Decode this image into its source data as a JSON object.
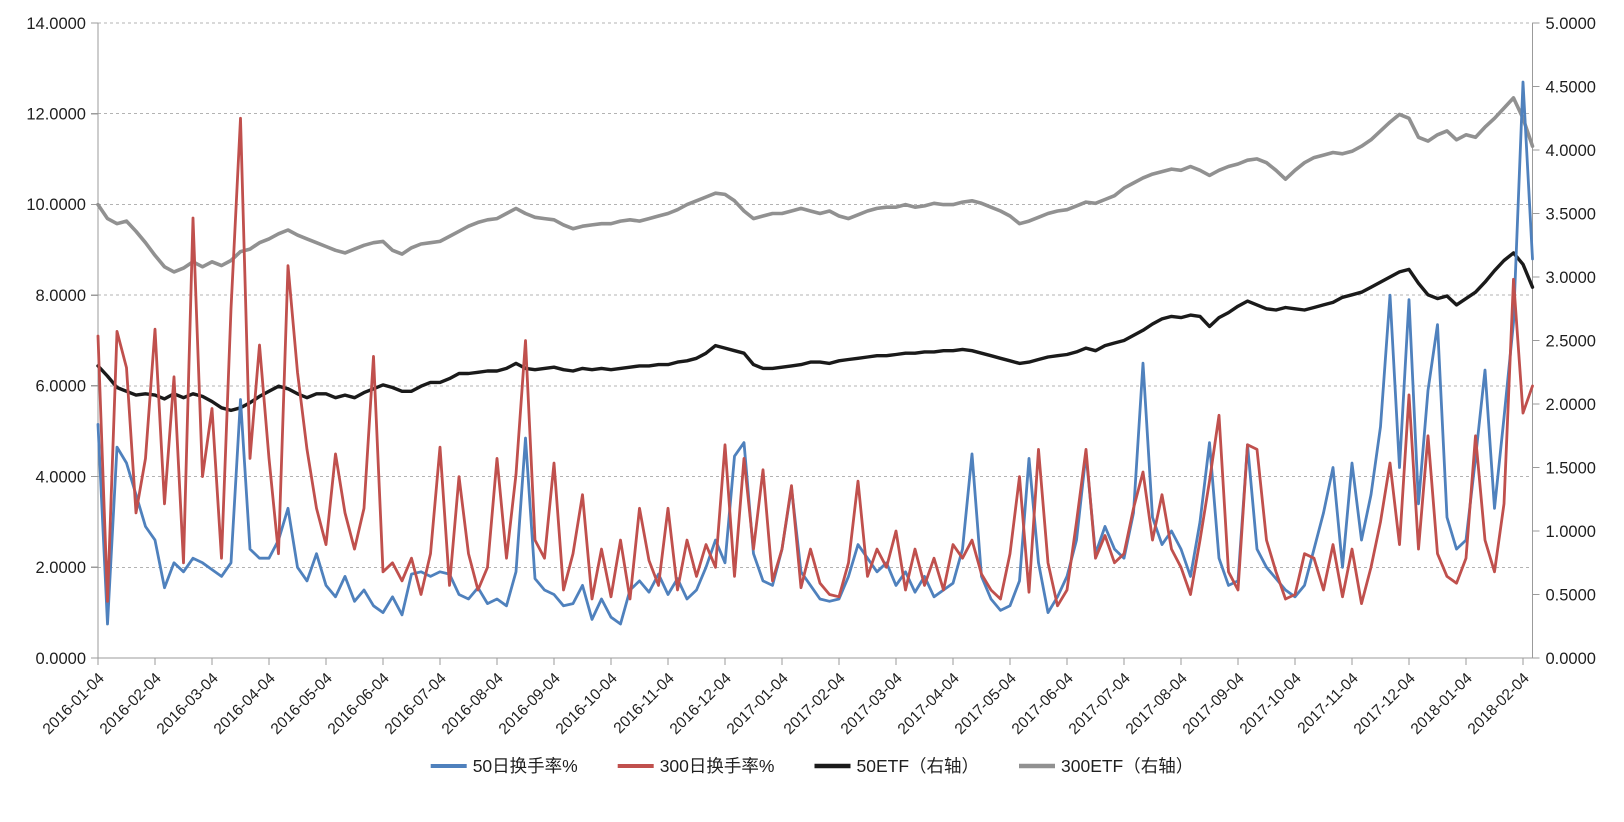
{
  "chart_data": {
    "type": "line",
    "title": "",
    "grid": "horizontal-dashed",
    "legend_position": "bottom-center",
    "points_per_month": 6,
    "x_tick_labels": [
      "2016-01-04",
      "2016-02-04",
      "2016-03-04",
      "2016-04-04",
      "2016-05-04",
      "2016-06-04",
      "2016-07-04",
      "2016-08-04",
      "2016-09-04",
      "2016-10-04",
      "2016-11-04",
      "2016-12-04",
      "2017-01-04",
      "2017-02-04",
      "2017-03-04",
      "2017-04-04",
      "2017-05-04",
      "2017-06-04",
      "2017-07-04",
      "2017-08-04",
      "2017-09-04",
      "2017-10-04",
      "2017-11-04",
      "2017-12-04",
      "2018-01-04",
      "2018-02-04"
    ],
    "left_axis": {
      "min": 0,
      "max": 14,
      "step": 2,
      "tick_labels": [
        "0.0000",
        "2.0000",
        "4.0000",
        "6.0000",
        "8.0000",
        "10.0000",
        "12.0000",
        "14.0000"
      ]
    },
    "right_axis": {
      "min": 0,
      "max": 5,
      "step": 0.5,
      "tick_labels": [
        "0.0000",
        "0.5000",
        "1.0000",
        "1.5000",
        "2.0000",
        "2.5000",
        "3.0000",
        "3.5000",
        "4.0000",
        "4.5000",
        "5.0000"
      ]
    },
    "colors": {
      "turnover_50d": "#4F81BD",
      "turnover_300d": "#C0504D",
      "etf_50": "#1a1a1a",
      "etf_300": "#919191",
      "gridline": "#b3b3b3",
      "axis": "#9b9b9b",
      "label": "#1f1f1f"
    },
    "series": [
      {
        "id": "turnover-50d",
        "name": "50日换手率%",
        "axis": "left",
        "color": "#4F81BD",
        "values": [
          5.15,
          0.75,
          4.65,
          4.3,
          3.6,
          2.9,
          2.6,
          1.55,
          2.1,
          1.9,
          2.2,
          2.1,
          1.95,
          1.8,
          2.1,
          5.7,
          2.4,
          2.2,
          2.2,
          2.6,
          3.3,
          2.0,
          1.7,
          2.3,
          1.6,
          1.35,
          1.8,
          1.25,
          1.5,
          1.15,
          1.0,
          1.35,
          0.95,
          1.85,
          1.9,
          1.8,
          1.9,
          1.85,
          1.4,
          1.3,
          1.55,
          1.2,
          1.3,
          1.15,
          1.9,
          4.85,
          1.75,
          1.5,
          1.4,
          1.15,
          1.2,
          1.6,
          0.85,
          1.3,
          0.9,
          0.75,
          1.5,
          1.7,
          1.45,
          1.85,
          1.4,
          1.75,
          1.3,
          1.5,
          2.0,
          2.6,
          2.1,
          4.45,
          4.75,
          2.3,
          1.7,
          1.6,
          2.4,
          3.75,
          1.9,
          1.6,
          1.3,
          1.25,
          1.3,
          1.8,
          2.5,
          2.2,
          1.9,
          2.1,
          1.6,
          1.9,
          1.45,
          1.8,
          1.35,
          1.5,
          1.65,
          2.4,
          4.5,
          1.8,
          1.3,
          1.05,
          1.15,
          1.7,
          4.4,
          2.1,
          1.0,
          1.35,
          1.8,
          2.6,
          4.5,
          2.3,
          2.9,
          2.4,
          2.2,
          3.2,
          6.5,
          3.1,
          2.5,
          2.8,
          2.4,
          1.8,
          3.0,
          4.75,
          2.2,
          1.6,
          1.7,
          4.7,
          2.4,
          2.0,
          1.75,
          1.5,
          1.35,
          1.6,
          2.4,
          3.2,
          4.2,
          2.0,
          4.3,
          2.6,
          3.6,
          5.1,
          8.0,
          4.2,
          7.9,
          3.4,
          5.9,
          7.35,
          3.1,
          2.4,
          2.6,
          4.4,
          6.35,
          3.3,
          5.3,
          7.4,
          12.7,
          8.8
        ]
      },
      {
        "id": "turnover-300d",
        "name": "300日换手率%",
        "axis": "left",
        "color": "#C0504D",
        "values": [
          7.1,
          1.25,
          7.2,
          6.4,
          3.2,
          4.4,
          7.25,
          3.4,
          6.2,
          2.1,
          9.7,
          4.0,
          5.5,
          2.2,
          7.7,
          11.9,
          4.4,
          6.9,
          4.4,
          2.3,
          8.65,
          6.3,
          4.6,
          3.3,
          2.5,
          4.5,
          3.2,
          2.4,
          3.3,
          6.65,
          1.9,
          2.1,
          1.7,
          2.2,
          1.4,
          2.3,
          4.65,
          1.6,
          4.0,
          2.3,
          1.5,
          2.0,
          4.4,
          2.2,
          4.05,
          7.0,
          2.6,
          2.2,
          4.3,
          1.5,
          2.3,
          3.6,
          1.3,
          2.4,
          1.35,
          2.6,
          1.3,
          3.3,
          2.15,
          1.6,
          3.3,
          1.5,
          2.6,
          1.8,
          2.5,
          2.0,
          4.7,
          1.8,
          4.4,
          2.4,
          4.15,
          1.7,
          2.4,
          3.8,
          1.55,
          2.4,
          1.65,
          1.4,
          1.35,
          2.1,
          3.9,
          1.8,
          2.4,
          2.0,
          2.8,
          1.5,
          2.4,
          1.6,
          2.2,
          1.5,
          2.5,
          2.2,
          2.6,
          1.85,
          1.5,
          1.3,
          2.3,
          4.0,
          1.45,
          4.6,
          2.1,
          1.15,
          1.5,
          3.0,
          4.6,
          2.2,
          2.7,
          2.1,
          2.3,
          3.3,
          4.1,
          2.6,
          3.6,
          2.4,
          2.0,
          1.4,
          2.6,
          3.9,
          5.35,
          1.9,
          1.5,
          4.7,
          4.6,
          2.6,
          1.9,
          1.3,
          1.4,
          2.3,
          2.2,
          1.5,
          2.5,
          1.35,
          2.4,
          1.2,
          2.0,
          3.0,
          4.3,
          2.5,
          5.8,
          2.4,
          4.9,
          2.3,
          1.8,
          1.65,
          2.2,
          4.9,
          2.6,
          1.9,
          3.4,
          8.35,
          5.4,
          6.0
        ]
      },
      {
        "id": "etf-50",
        "name": "50ETF（右轴）",
        "axis": "right",
        "color": "#1a1a1a",
        "values": [
          2.3,
          2.22,
          2.13,
          2.1,
          2.07,
          2.08,
          2.07,
          2.04,
          2.08,
          2.05,
          2.08,
          2.06,
          2.02,
          1.97,
          1.95,
          1.97,
          2.01,
          2.06,
          2.1,
          2.14,
          2.12,
          2.08,
          2.05,
          2.08,
          2.08,
          2.05,
          2.07,
          2.05,
          2.09,
          2.12,
          2.15,
          2.13,
          2.1,
          2.1,
          2.14,
          2.17,
          2.17,
          2.2,
          2.24,
          2.24,
          2.25,
          2.26,
          2.26,
          2.28,
          2.32,
          2.28,
          2.27,
          2.28,
          2.29,
          2.27,
          2.26,
          2.28,
          2.27,
          2.28,
          2.27,
          2.28,
          2.29,
          2.3,
          2.3,
          2.31,
          2.31,
          2.33,
          2.34,
          2.36,
          2.4,
          2.46,
          2.44,
          2.42,
          2.4,
          2.31,
          2.28,
          2.28,
          2.29,
          2.3,
          2.31,
          2.33,
          2.33,
          2.32,
          2.34,
          2.35,
          2.36,
          2.37,
          2.38,
          2.38,
          2.39,
          2.4,
          2.4,
          2.41,
          2.41,
          2.42,
          2.42,
          2.43,
          2.42,
          2.4,
          2.38,
          2.36,
          2.34,
          2.32,
          2.33,
          2.35,
          2.37,
          2.38,
          2.39,
          2.41,
          2.44,
          2.42,
          2.46,
          2.48,
          2.5,
          2.54,
          2.58,
          2.63,
          2.67,
          2.69,
          2.68,
          2.7,
          2.69,
          2.61,
          2.68,
          2.72,
          2.77,
          2.81,
          2.78,
          2.75,
          2.74,
          2.76,
          2.75,
          2.74,
          2.76,
          2.78,
          2.8,
          2.84,
          2.86,
          2.88,
          2.92,
          2.96,
          3.0,
          3.04,
          3.06,
          2.95,
          2.86,
          2.83,
          2.85,
          2.78,
          2.83,
          2.88,
          2.96,
          3.05,
          3.13,
          3.19,
          3.1,
          2.92
        ]
      },
      {
        "id": "etf-300",
        "name": "300ETF（右轴）",
        "axis": "right",
        "color": "#919191",
        "values": [
          3.57,
          3.46,
          3.42,
          3.44,
          3.36,
          3.27,
          3.17,
          3.08,
          3.04,
          3.07,
          3.12,
          3.08,
          3.12,
          3.09,
          3.13,
          3.2,
          3.22,
          3.27,
          3.3,
          3.34,
          3.37,
          3.33,
          3.3,
          3.27,
          3.24,
          3.21,
          3.19,
          3.22,
          3.25,
          3.27,
          3.28,
          3.21,
          3.18,
          3.23,
          3.26,
          3.27,
          3.28,
          3.32,
          3.36,
          3.4,
          3.43,
          3.45,
          3.46,
          3.5,
          3.54,
          3.5,
          3.47,
          3.46,
          3.45,
          3.41,
          3.38,
          3.4,
          3.41,
          3.42,
          3.42,
          3.44,
          3.45,
          3.44,
          3.46,
          3.48,
          3.5,
          3.53,
          3.57,
          3.6,
          3.63,
          3.66,
          3.65,
          3.6,
          3.52,
          3.46,
          3.48,
          3.5,
          3.5,
          3.52,
          3.54,
          3.52,
          3.5,
          3.52,
          3.48,
          3.46,
          3.49,
          3.52,
          3.54,
          3.55,
          3.55,
          3.57,
          3.55,
          3.56,
          3.58,
          3.57,
          3.57,
          3.59,
          3.6,
          3.58,
          3.55,
          3.52,
          3.48,
          3.42,
          3.44,
          3.47,
          3.5,
          3.52,
          3.53,
          3.56,
          3.59,
          3.58,
          3.61,
          3.64,
          3.7,
          3.74,
          3.78,
          3.81,
          3.83,
          3.85,
          3.84,
          3.87,
          3.84,
          3.8,
          3.84,
          3.87,
          3.89,
          3.92,
          3.93,
          3.9,
          3.84,
          3.77,
          3.84,
          3.9,
          3.94,
          3.96,
          3.98,
          3.97,
          3.99,
          4.03,
          4.08,
          4.15,
          4.22,
          4.28,
          4.25,
          4.1,
          4.07,
          4.12,
          4.15,
          4.08,
          4.12,
          4.1,
          4.18,
          4.25,
          4.33,
          4.41,
          4.25,
          4.03
        ]
      }
    ]
  }
}
